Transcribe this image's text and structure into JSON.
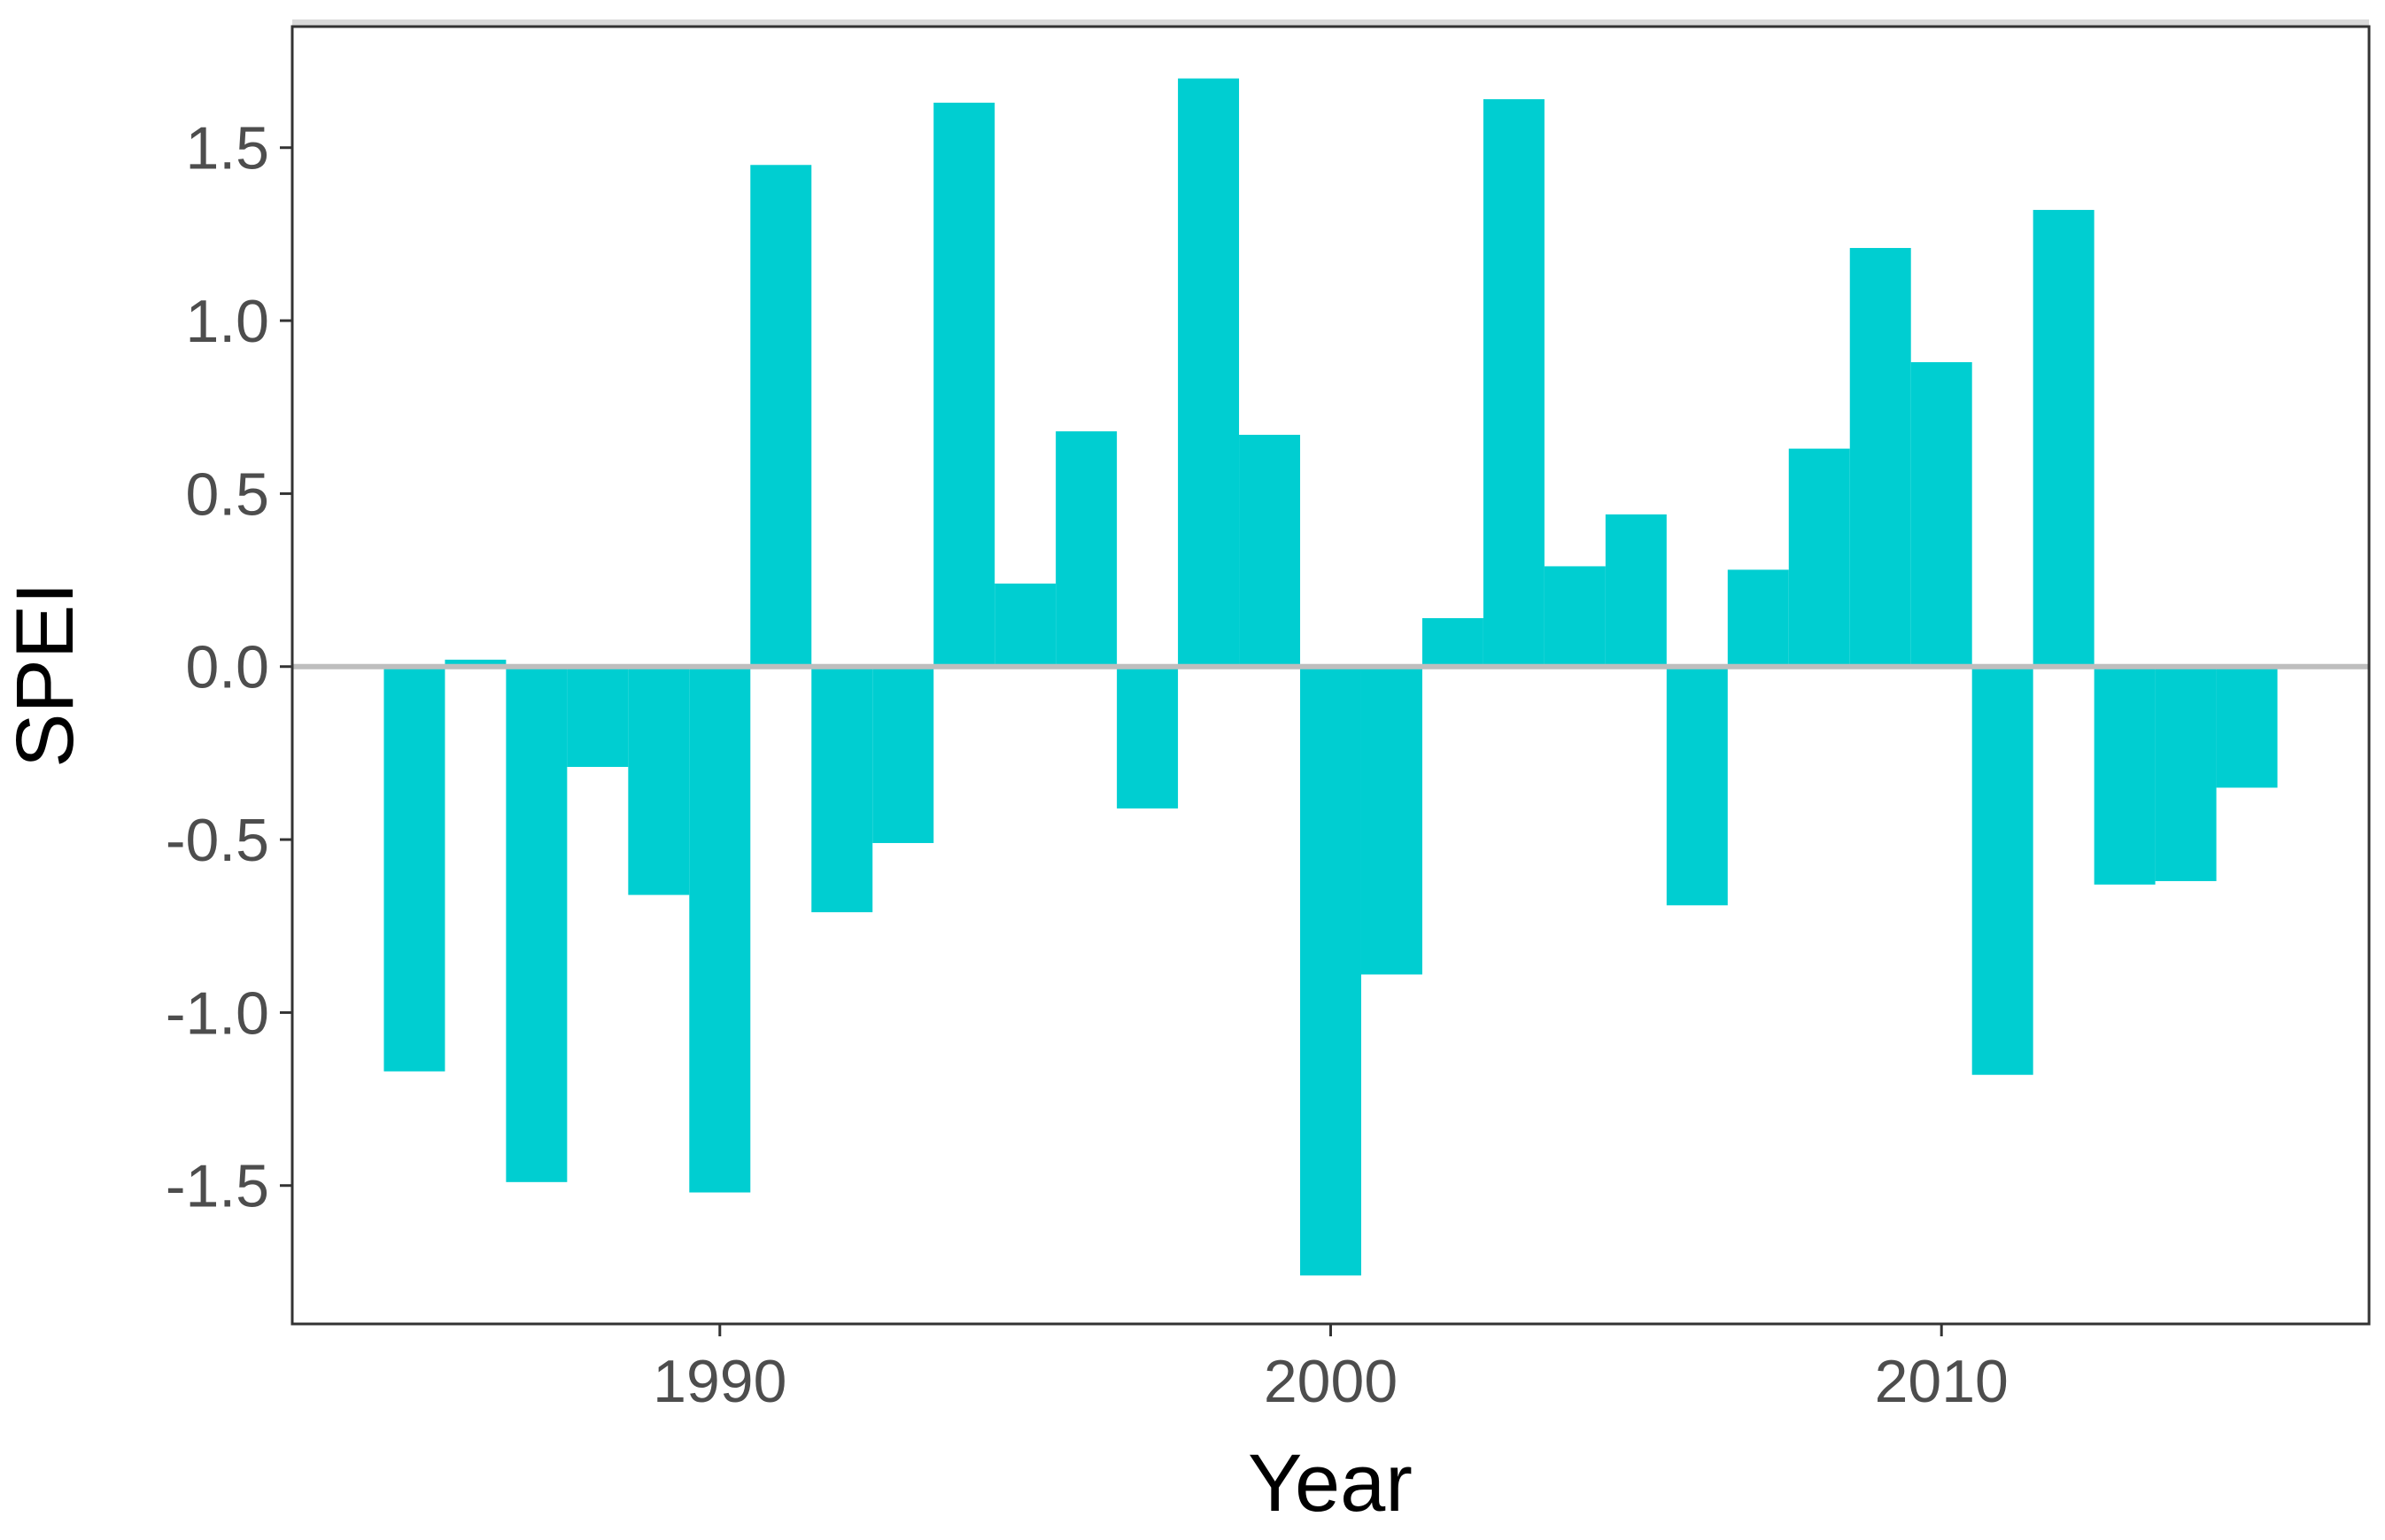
{
  "chart_data": {
    "type": "bar",
    "xlabel": "Year",
    "ylabel": "SPEI",
    "xlim": [
      1983,
      2017
    ],
    "ylim": [
      -1.9,
      1.85
    ],
    "xticks": [
      "1990",
      "2000",
      "2010"
    ],
    "yticks": [
      "1.5",
      "1.0",
      "0.5",
      "0.0",
      "-0.5",
      "-1.0",
      "-1.5"
    ],
    "grid": false,
    "legend": "none",
    "bar_color": "#00CED1",
    "zero_line_color": "#BEBEBE",
    "x": [
      1985,
      1986,
      1987,
      1988,
      1989,
      1990,
      1991,
      1992,
      1993,
      1994,
      1995,
      1996,
      1997,
      1998,
      1999,
      2000,
      2001,
      2002,
      2003,
      2004,
      2005,
      2006,
      2007,
      2008,
      2009,
      2010,
      2011,
      2012,
      2013,
      2014,
      2015
    ],
    "values": [
      -1.17,
      0.02,
      -1.49,
      -0.29,
      -0.66,
      -1.52,
      1.45,
      -0.71,
      -0.51,
      1.63,
      0.24,
      0.68,
      -0.41,
      1.7,
      0.67,
      -1.76,
      -0.89,
      0.14,
      1.64,
      0.29,
      0.44,
      -0.69,
      0.28,
      0.63,
      1.21,
      0.88,
      -1.18,
      1.32,
      -0.63,
      -0.62,
      -0.35
    ]
  }
}
